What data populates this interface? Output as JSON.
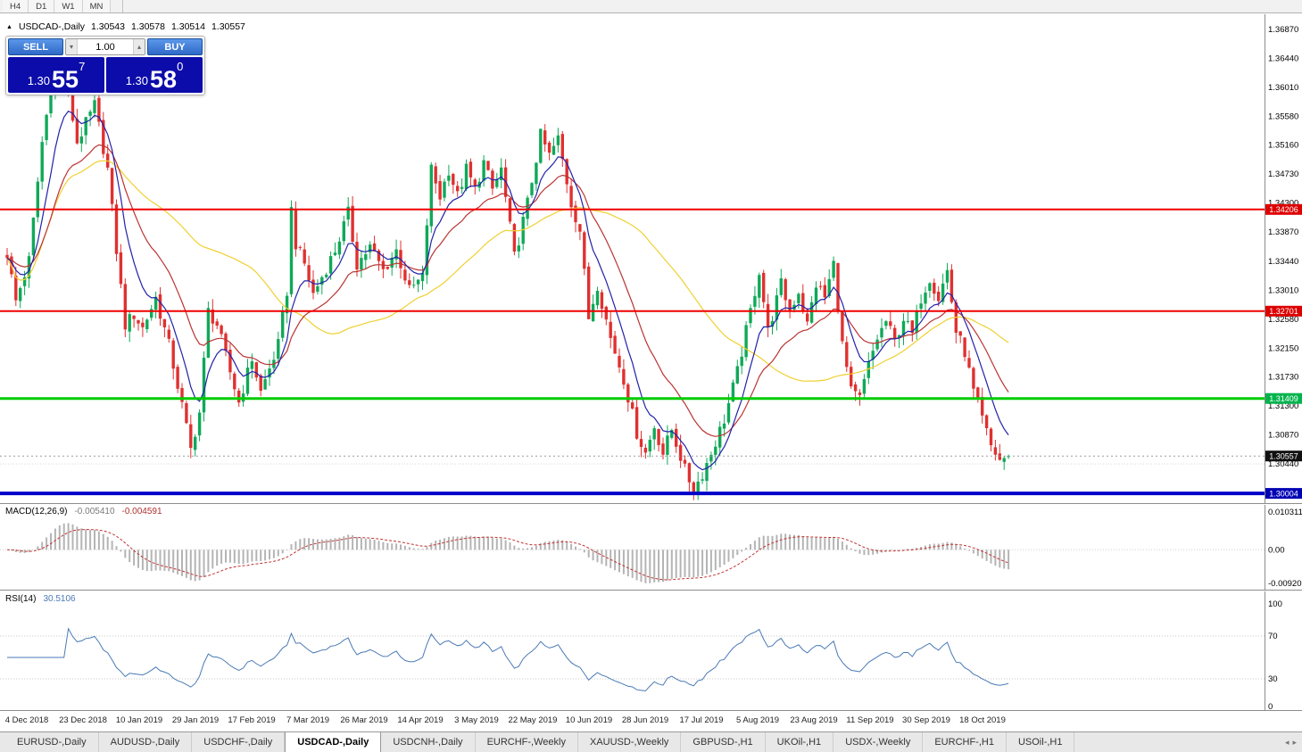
{
  "window": {
    "title": "USDCAD-,Daily"
  },
  "toolbar": {
    "timeframes": [
      "H4",
      "D1",
      "W1",
      "MN"
    ]
  },
  "chart": {
    "info": {
      "symbol": "USDCAD-,Daily",
      "open": "1.30543",
      "high": "1.30578",
      "low": "1.30514",
      "close": "1.30557"
    },
    "trade_panel": {
      "sell_label": "SELL",
      "buy_label": "BUY",
      "volume": "1.00",
      "sell_price": {
        "big": "1.30",
        "pips": "55",
        "pip": "7"
      },
      "buy_price": {
        "big": "1.30",
        "pips": "58",
        "pip": "0"
      }
    },
    "axis_labels": [
      "1.36870",
      "1.36440",
      "1.36010",
      "1.35580",
      "1.35160",
      "1.34730",
      "1.34300",
      "1.33870",
      "1.33440",
      "1.33010",
      "1.32580",
      "1.32150",
      "1.31730",
      "1.31300",
      "1.30870",
      "1.30440"
    ],
    "levels": [
      {
        "price": 1.34206,
        "label": "1.34206",
        "color": "#f00000",
        "tag": "#dd0000",
        "width": 2
      },
      {
        "price": 1.32701,
        "label": "1.32701",
        "color": "#f00000",
        "tag": "#dd0000",
        "width": 2
      },
      {
        "price": 1.31409,
        "label": "1.31409",
        "color": "#00cc00",
        "tag": "#00b44c",
        "width": 3
      },
      {
        "price": 1.30004,
        "label": "1.30004",
        "color": "#0000c8",
        "tag": "#0000b4",
        "width": 4
      }
    ],
    "current_price": {
      "price": 1.30557,
      "label": "1.30557",
      "tag": "#111111"
    },
    "grid_line": {
      "price": 1.3044
    },
    "macd": {
      "name": "MACD(12,26,9)",
      "value_main": "-0.005410",
      "value_signal": "-0.004591",
      "axis": [
        "0.010311",
        "0.00",
        "-0.00920"
      ],
      "max": 0.010311,
      "min": -0.0092
    },
    "rsi": {
      "name": "RSI(14)",
      "value": "30.5106",
      "axis": [
        "100",
        "70",
        "30",
        "0"
      ],
      "levels": [
        70,
        30
      ]
    },
    "x_labels": [
      "4 Dec 2018",
      "23 Dec 2018",
      "10 Jan 2019",
      "29 Jan 2019",
      "17 Feb 2019",
      "7 Mar 2019",
      "26 Mar 2019",
      "14 Apr 2019",
      "3 May 2019",
      "22 May 2019",
      "10 Jun 2019",
      "28 Jun 2019",
      "17 Jul 2019",
      "5 Aug 2019",
      "23 Aug 2019",
      "11 Sep 2019",
      "30 Sep 2019",
      "18 Oct 2019"
    ]
  },
  "chart_data": {
    "type": "candlestick",
    "symbol": "USDCAD",
    "timeframe": "Daily",
    "visible_range": {
      "price_top": 1.37094,
      "price_bottom": 1.29847,
      "date_start": "4 Dec 2018",
      "date_end": "18 Oct 2019"
    },
    "candle_count": 230,
    "price_path": [
      [
        0,
        1.3355
      ],
      [
        2,
        1.3285
      ],
      [
        5,
        1.3345
      ],
      [
        8,
        1.352
      ],
      [
        11,
        1.364
      ],
      [
        13,
        1.3625
      ],
      [
        16,
        1.352
      ],
      [
        20,
        1.3575
      ],
      [
        23,
        1.348
      ],
      [
        25,
        1.336
      ],
      [
        27,
        1.325
      ],
      [
        29,
        1.3265
      ],
      [
        31,
        1.3245
      ],
      [
        34,
        1.329
      ],
      [
        37,
        1.322
      ],
      [
        40,
        1.313
      ],
      [
        42,
        1.3065
      ],
      [
        44,
        1.312
      ],
      [
        46,
        1.327
      ],
      [
        48,
        1.325
      ],
      [
        51,
        1.318
      ],
      [
        53,
        1.3135
      ],
      [
        56,
        1.32
      ],
      [
        58,
        1.315
      ],
      [
        60,
        1.3185
      ],
      [
        62,
        1.322
      ],
      [
        64,
        1.33
      ],
      [
        65,
        1.342
      ],
      [
        66,
        1.337
      ],
      [
        68,
        1.334
      ],
      [
        70,
        1.3295
      ],
      [
        75,
        1.336
      ],
      [
        78,
        1.3415
      ],
      [
        80,
        1.334
      ],
      [
        83,
        1.3365
      ],
      [
        86,
        1.333
      ],
      [
        89,
        1.336
      ],
      [
        92,
        1.33
      ],
      [
        95,
        1.332
      ],
      [
        97,
        1.348
      ],
      [
        99,
        1.344
      ],
      [
        101,
        1.348
      ],
      [
        103,
        1.344
      ],
      [
        105,
        1.348
      ],
      [
        107,
        1.345
      ],
      [
        109,
        1.349
      ],
      [
        111,
        1.345
      ],
      [
        113,
        1.348
      ],
      [
        116,
        1.335
      ],
      [
        119,
        1.343
      ],
      [
        122,
        1.353
      ],
      [
        124,
        1.35
      ],
      [
        126,
        1.3525
      ],
      [
        129,
        1.343
      ],
      [
        131,
        1.339
      ],
      [
        133,
        1.326
      ],
      [
        135,
        1.331
      ],
      [
        138,
        1.323
      ],
      [
        141,
        1.317
      ],
      [
        144,
        1.309
      ],
      [
        146,
        1.306
      ],
      [
        148,
        1.31
      ],
      [
        150,
        1.306
      ],
      [
        152,
        1.3095
      ],
      [
        155,
        1.3035
      ],
      [
        157,
        1.3005
      ],
      [
        159,
        1.303
      ],
      [
        161,
        1.306
      ],
      [
        164,
        1.311
      ],
      [
        167,
        1.318
      ],
      [
        170,
        1.327
      ],
      [
        172,
        1.333
      ],
      [
        174,
        1.324
      ],
      [
        177,
        1.331
      ],
      [
        179,
        1.327
      ],
      [
        181,
        1.33
      ],
      [
        183,
        1.325
      ],
      [
        185,
        1.331
      ],
      [
        187,
        1.329
      ],
      [
        189,
        1.334
      ],
      [
        191,
        1.322
      ],
      [
        193,
        1.315
      ],
      [
        195,
        1.314
      ],
      [
        197,
        1.319
      ],
      [
        199,
        1.323
      ],
      [
        201,
        1.3255
      ],
      [
        203,
        1.3225
      ],
      [
        205,
        1.326
      ],
      [
        207,
        1.3235
      ],
      [
        209,
        1.329
      ],
      [
        211,
        1.332
      ],
      [
        213,
        1.329
      ],
      [
        215,
        1.333
      ],
      [
        217,
        1.324
      ],
      [
        219,
        1.321
      ],
      [
        221,
        1.315
      ],
      [
        223,
        1.311
      ],
      [
        225,
        1.307
      ],
      [
        227,
        1.305
      ],
      [
        229,
        1.3056
      ]
    ],
    "overlays": [
      {
        "name": "ma-slow",
        "type": "sma",
        "period": 50,
        "color": "#f0d030"
      },
      {
        "name": "ma-mid",
        "type": "ema",
        "period": 20,
        "color": "#bb3333"
      },
      {
        "name": "ma-fast",
        "type": "ema",
        "period": 8,
        "color": "#2222aa"
      }
    ],
    "colors": {
      "up": "#0fa958",
      "down": "#e03030"
    }
  },
  "tabs": {
    "items": [
      {
        "label": "EURUSD-,Daily",
        "active": false
      },
      {
        "label": "AUDUSD-,Daily",
        "active": false
      },
      {
        "label": "USDCHF-,Daily",
        "active": false
      },
      {
        "label": "USDCAD-,Daily",
        "active": true
      },
      {
        "label": "USDCNH-,Daily",
        "active": false
      },
      {
        "label": "EURCHF-,Weekly",
        "active": false
      },
      {
        "label": "XAUUSD-,Weekly",
        "active": false
      },
      {
        "label": "GBPUSD-,H1",
        "active": false
      },
      {
        "label": "UKOil-,H1",
        "active": false
      },
      {
        "label": "USDX-,Weekly",
        "active": false
      },
      {
        "label": "EURCHF-,H1",
        "active": false
      },
      {
        "label": "USOil-,H1",
        "active": false
      }
    ]
  }
}
